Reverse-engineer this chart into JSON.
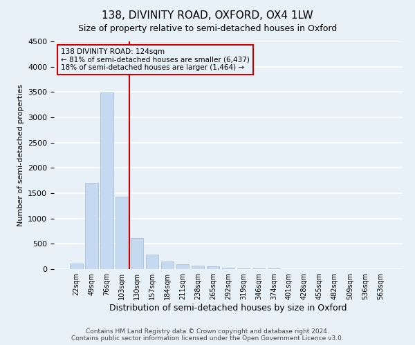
{
  "title": "138, DIVINITY ROAD, OXFORD, OX4 1LW",
  "subtitle": "Size of property relative to semi-detached houses in Oxford",
  "xlabel": "Distribution of semi-detached houses by size in Oxford",
  "ylabel": "Number of semi-detached properties",
  "bar_color": "#c5d9f0",
  "bar_edge_color": "#a0b8d8",
  "categories": [
    "22sqm",
    "49sqm",
    "76sqm",
    "103sqm",
    "130sqm",
    "157sqm",
    "184sqm",
    "211sqm",
    "238sqm",
    "265sqm",
    "292sqm",
    "319sqm",
    "346sqm",
    "374sqm",
    "401sqm",
    "428sqm",
    "455sqm",
    "482sqm",
    "509sqm",
    "536sqm",
    "563sqm"
  ],
  "values": [
    110,
    1700,
    3490,
    1430,
    620,
    280,
    155,
    100,
    75,
    55,
    30,
    18,
    12,
    8,
    5,
    4,
    3,
    2,
    1,
    1,
    0
  ],
  "ylim": [
    0,
    4500
  ],
  "yticks": [
    0,
    500,
    1000,
    1500,
    2000,
    2500,
    3000,
    3500,
    4000,
    4500
  ],
  "vline_x_index": 4,
  "vline_color": "#cc0000",
  "annotation_text": "138 DIVINITY ROAD: 124sqm\n← 81% of semi-detached houses are smaller (6,437)\n18% of semi-detached houses are larger (1,464) →",
  "annotation_box_color": "#cc0000",
  "footer_text": "Contains HM Land Registry data © Crown copyright and database right 2024.\nContains public sector information licensed under the Open Government Licence v3.0.",
  "background_color": "#e8f0f8",
  "grid_color": "#ffffff"
}
